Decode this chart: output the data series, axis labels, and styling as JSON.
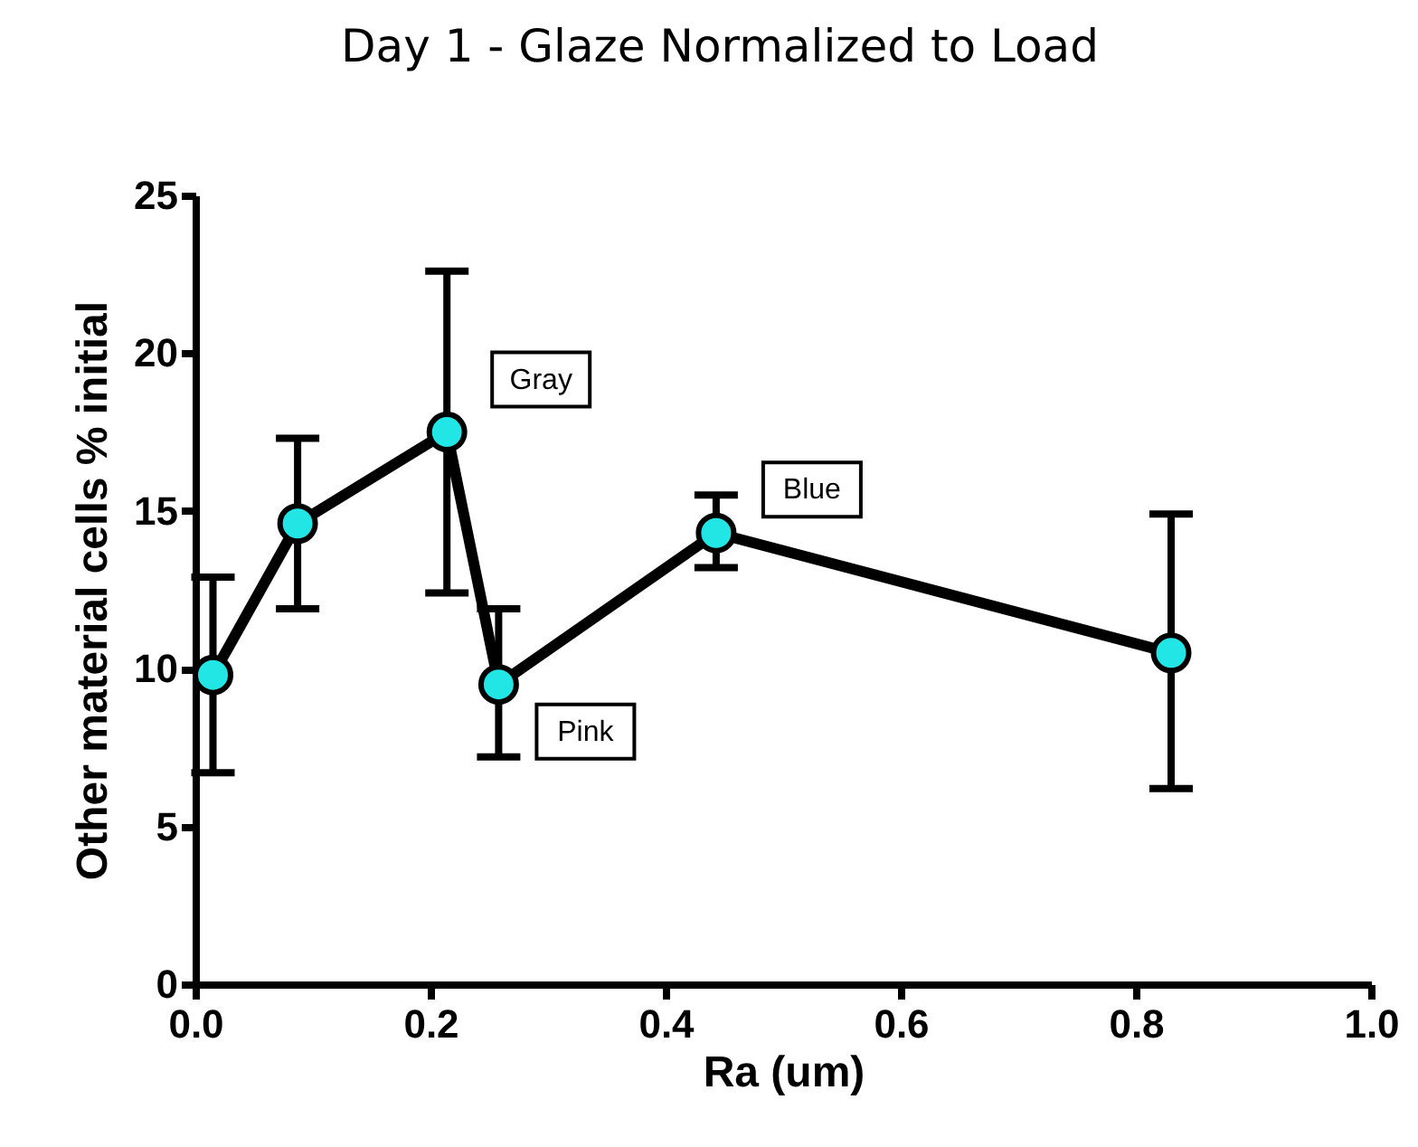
{
  "chart_data": {
    "type": "line",
    "title": "Day 1 - Glaze Normalized to Load",
    "xlabel": "Ra (um)",
    "ylabel": "Other material cells % initial",
    "x": [
      0.015,
      0.087,
      0.214,
      0.258,
      0.443,
      0.83
    ],
    "series": [
      {
        "color": "#22e6e6",
        "values": [
          9.8,
          14.6,
          17.5,
          9.5,
          14.3,
          10.5
        ],
        "errors": [
          [
            6.7,
            12.9
          ],
          [
            11.9,
            17.3
          ],
          [
            12.4,
            22.6
          ],
          [
            7.2,
            11.9
          ],
          [
            13.2,
            15.5
          ],
          [
            6.2,
            14.9
          ]
        ]
      }
    ],
    "xlim": [
      0,
      1.0
    ],
    "xticks": [
      {
        "value": 0,
        "label": "0.0"
      },
      0.2,
      0.4,
      0.6,
      0.8,
      {
        "value": 1.0,
        "label": "1.0"
      }
    ],
    "ylim": [
      0,
      25
    ],
    "yticks": [
      0,
      5,
      10,
      15,
      20,
      25
    ],
    "marker": "circle",
    "line_style": "solid",
    "annotations": [
      {
        "text": "Gray",
        "x": 0.214,
        "y": 17.5
      },
      {
        "text": "Pink",
        "x": 0.258,
        "y": 9.5
      },
      {
        "text": "Blue",
        "x": 0.443,
        "y": 14.3
      }
    ]
  }
}
